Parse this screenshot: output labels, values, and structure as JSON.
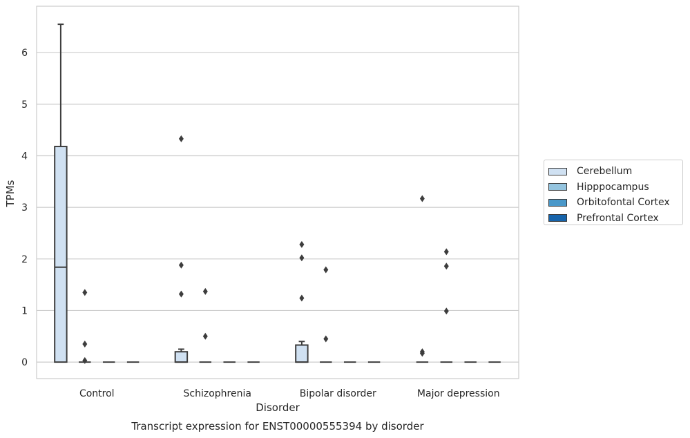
{
  "chart_data": {
    "type": "box",
    "title": "Transcript expression for ENST00000555394 by disorder",
    "xlabel": "Disorder",
    "ylabel": "TPMs",
    "ylim": [
      -0.32,
      6.9
    ],
    "yticks": [
      0,
      1,
      2,
      3,
      4,
      5,
      6
    ],
    "grid": true,
    "legend_position": "right",
    "categories": [
      "Control",
      "Schizophrenia",
      "Bipolar disorder",
      "Major depression"
    ],
    "series": [
      {
        "name": "Cerebellum",
        "color": "#d0e1f2",
        "boxes": [
          {
            "min": 0,
            "q1": 0,
            "median": 1.84,
            "q3": 4.18,
            "max": 6.55,
            "outliers": []
          },
          {
            "min": 0,
            "q1": 0,
            "median": 0,
            "q3": 0.2,
            "max": 0.25,
            "outliers": [
              4.33,
              1.88,
              1.32
            ]
          },
          {
            "min": 0,
            "q1": 0,
            "median": 0,
            "q3": 0.33,
            "max": 0.4,
            "outliers": [
              2.28,
              2.02,
              1.24
            ]
          },
          {
            "min": 0,
            "q1": 0,
            "median": 0,
            "q3": 0,
            "max": 0,
            "outliers": [
              3.17,
              0.2,
              0.17
            ]
          }
        ]
      },
      {
        "name": "Hipppocampus",
        "color": "#94c4df",
        "boxes": [
          {
            "min": 0,
            "q1": 0,
            "median": 0,
            "q3": 0,
            "max": 0,
            "outliers": [
              1.35,
              0.35,
              0.03
            ]
          },
          {
            "min": 0,
            "q1": 0,
            "median": 0,
            "q3": 0,
            "max": 0,
            "outliers": [
              1.37,
              0.5
            ]
          },
          {
            "min": 0,
            "q1": 0,
            "median": 0,
            "q3": 0,
            "max": 0,
            "outliers": [
              1.79,
              0.45
            ]
          },
          {
            "min": 0,
            "q1": 0,
            "median": 0,
            "q3": 0,
            "max": 0,
            "outliers": [
              2.14,
              1.86,
              0.99
            ]
          }
        ]
      },
      {
        "name": "Orbitofontal Cortex",
        "color": "#4a98c9",
        "boxes": [
          {
            "min": 0,
            "q1": 0,
            "median": 0,
            "q3": 0,
            "max": 0,
            "outliers": []
          },
          {
            "min": 0,
            "q1": 0,
            "median": 0,
            "q3": 0,
            "max": 0,
            "outliers": []
          },
          {
            "min": 0,
            "q1": 0,
            "median": 0,
            "q3": 0,
            "max": 0,
            "outliers": []
          },
          {
            "min": 0,
            "q1": 0,
            "median": 0,
            "q3": 0,
            "max": 0,
            "outliers": []
          }
        ]
      },
      {
        "name": "Prefrontal Cortex",
        "color": "#1764ab",
        "boxes": [
          {
            "min": 0,
            "q1": 0,
            "median": 0,
            "q3": 0,
            "max": 0,
            "outliers": []
          },
          {
            "min": 0,
            "q1": 0,
            "median": 0,
            "q3": 0,
            "max": 0,
            "outliers": []
          },
          {
            "min": 0,
            "q1": 0,
            "median": 0,
            "q3": 0,
            "max": 0,
            "outliers": []
          },
          {
            "min": 0,
            "q1": 0,
            "median": 0,
            "q3": 0,
            "max": 0,
            "outliers": []
          }
        ]
      }
    ]
  }
}
